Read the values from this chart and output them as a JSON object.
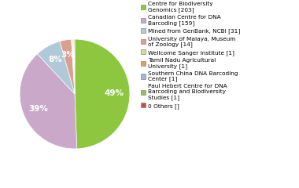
{
  "labels": [
    "Centre for Biodiversity\nGenomics [203]",
    "Canadian Centre for DNA\nBarcoding [159]",
    "Mined from GenBank, NCBI [31]",
    "University of Malaya, Museum\nof Zoology [14]",
    "Wellcome Sanger Institute [1]",
    "Tamil Nadu Agricultural\nUniversity [1]",
    "Southern China DNA Barcoding\nCenter [1]",
    "Paul Hebert Centre for DNA\nBarcoding and Biodiversity\nStudies [1]",
    "0 Others []"
  ],
  "values": [
    203,
    159,
    31,
    14,
    1,
    1,
    1,
    1,
    0
  ],
  "colors": [
    "#8dc63f",
    "#c9a8c9",
    "#b0c8d8",
    "#d8a090",
    "#d8d8a0",
    "#e0a060",
    "#a0b8d0",
    "#90c060",
    "#c85040"
  ],
  "background_color": "#ffffff",
  "figsize": [
    3.8,
    2.4
  ],
  "dpi": 100
}
